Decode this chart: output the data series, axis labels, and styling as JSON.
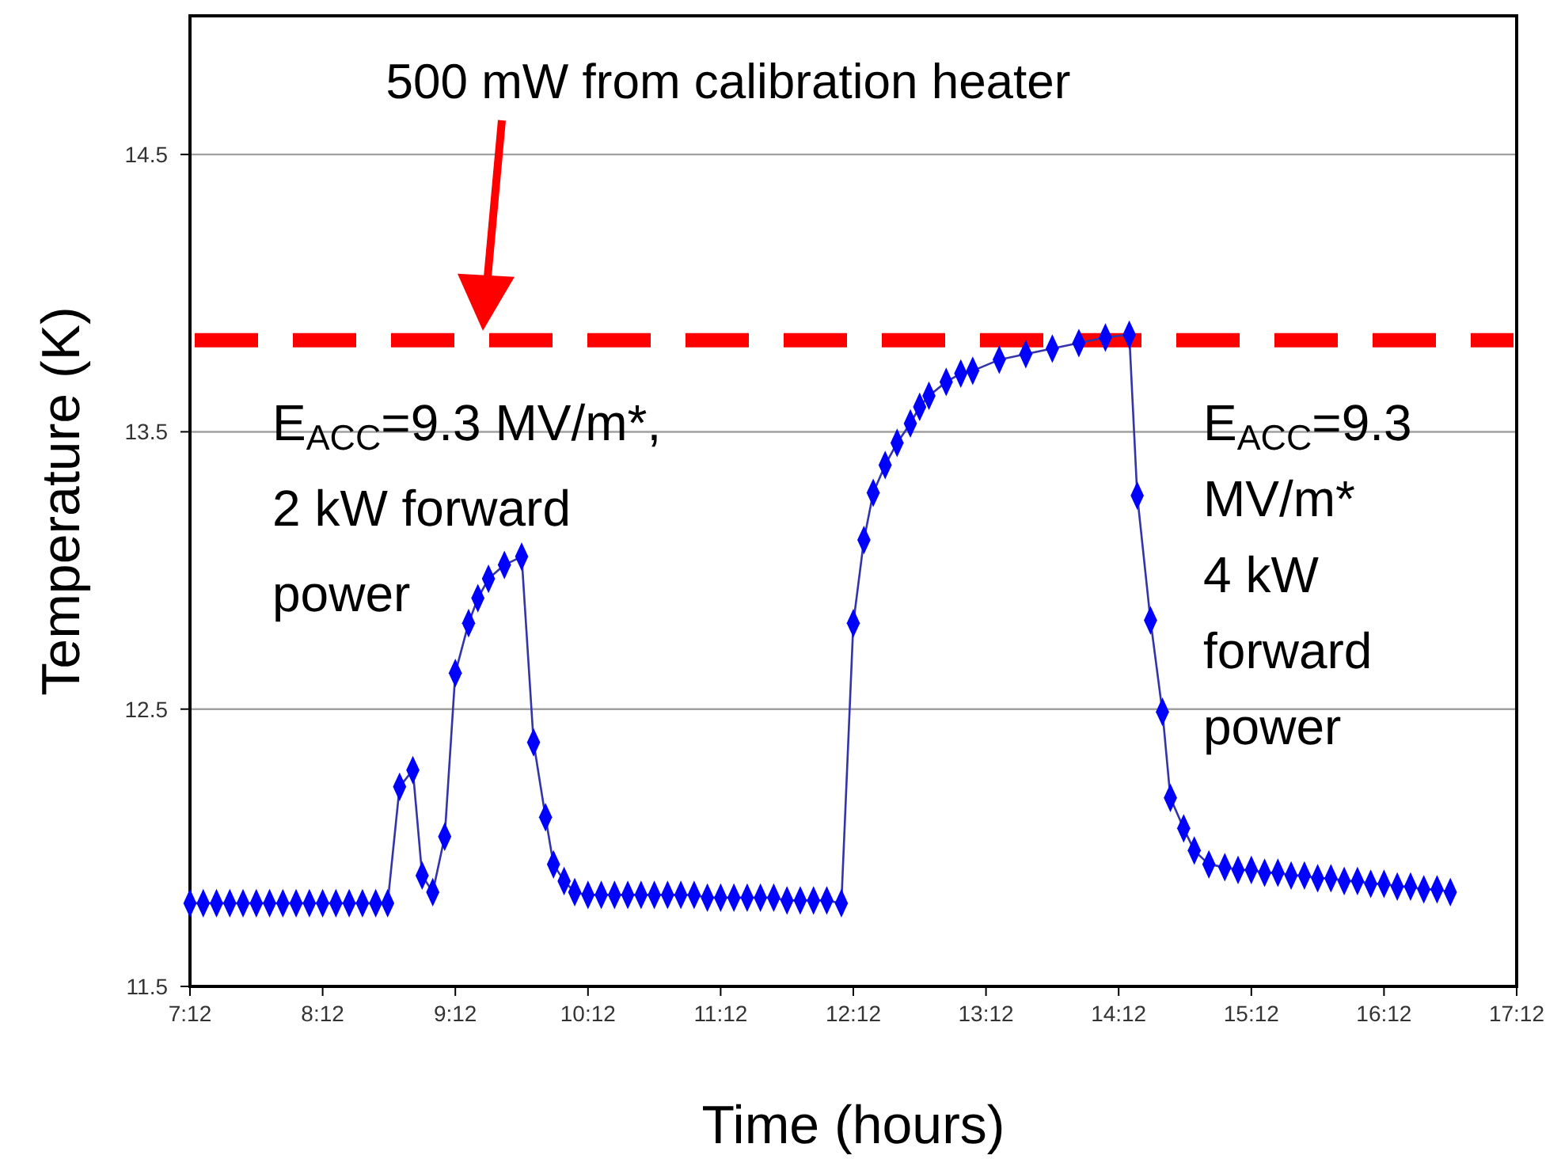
{
  "chart_data": {
    "type": "line",
    "xlabel": "Time (hours)",
    "ylabel": "Temperature (K)",
    "x": [
      7.2,
      7.3,
      7.4,
      7.5,
      7.6,
      7.7,
      7.8,
      7.9,
      8.0,
      8.1,
      8.2,
      8.3,
      8.4,
      8.5,
      8.6,
      8.69,
      8.78,
      8.88,
      8.95,
      9.03,
      9.12,
      9.2,
      9.3,
      9.37,
      9.45,
      9.57,
      9.7,
      9.79,
      9.88,
      9.94,
      10.02,
      10.1,
      10.2,
      10.3,
      10.4,
      10.5,
      10.6,
      10.7,
      10.8,
      10.9,
      11.0,
      11.1,
      11.2,
      11.3,
      11.4,
      11.5,
      11.6,
      11.7,
      11.8,
      11.9,
      12.0,
      12.11,
      12.2,
      12.28,
      12.35,
      12.44,
      12.53,
      12.63,
      12.7,
      12.77,
      12.9,
      13.01,
      13.1,
      13.3,
      13.5,
      13.7,
      13.9,
      14.1,
      14.28,
      14.34,
      14.44,
      14.53,
      14.59,
      14.69,
      14.77,
      14.88,
      15.0,
      15.1,
      15.2,
      15.3,
      15.4,
      15.5,
      15.6,
      15.7,
      15.8,
      15.9,
      16.0,
      16.1,
      16.2,
      16.3,
      16.4,
      16.5,
      16.6,
      16.7
    ],
    "series": [
      {
        "color": "#0000ff",
        "values": [
          11.8,
          11.8,
          11.8,
          11.8,
          11.8,
          11.8,
          11.8,
          11.8,
          11.8,
          11.8,
          11.8,
          11.8,
          11.8,
          11.8,
          11.8,
          11.8,
          12.22,
          12.28,
          11.9,
          11.84,
          12.04,
          12.63,
          12.81,
          12.9,
          12.97,
          13.02,
          13.05,
          12.38,
          12.11,
          11.94,
          11.88,
          11.84,
          11.83,
          11.83,
          11.83,
          11.83,
          11.83,
          11.83,
          11.83,
          11.83,
          11.83,
          11.82,
          11.82,
          11.82,
          11.82,
          11.82,
          11.82,
          11.81,
          11.81,
          11.81,
          11.81,
          11.8,
          12.81,
          13.11,
          13.28,
          13.38,
          13.46,
          13.53,
          13.59,
          13.63,
          13.68,
          13.71,
          13.72,
          13.76,
          13.78,
          13.8,
          13.82,
          13.84,
          13.85,
          13.27,
          12.82,
          12.49,
          12.18,
          12.07,
          11.99,
          11.94,
          11.93,
          11.92,
          11.92,
          11.91,
          11.91,
          11.9,
          11.9,
          11.89,
          11.89,
          11.88,
          11.88,
          11.87,
          11.87,
          11.86,
          11.86,
          11.85,
          11.85,
          11.84
        ]
      }
    ],
    "xlim": [
      7.2,
      17.2
    ],
    "xticks": [
      {
        "value": 7.2,
        "label": "7:12"
      },
      {
        "value": 8.2,
        "label": "8:12"
      },
      {
        "value": 9.2,
        "label": "9:12"
      },
      {
        "value": 10.2,
        "label": "10:12"
      },
      {
        "value": 11.2,
        "label": "11:12"
      },
      {
        "value": 12.2,
        "label": "12:12"
      },
      {
        "value": 13.2,
        "label": "13:12"
      },
      {
        "value": 14.2,
        "label": "14:12"
      },
      {
        "value": 15.2,
        "label": "15:12"
      },
      {
        "value": 16.2,
        "label": "16:12"
      },
      {
        "value": 17.2,
        "label": "17:12"
      }
    ],
    "ylim": [
      11.5,
      15.0
    ],
    "yticks": [
      11.5,
      12.5,
      13.5,
      14.5
    ],
    "grid": "y",
    "marker": "diamond",
    "line_style": "solid",
    "ref_lines": [
      {
        "axis": "y",
        "value": 13.83,
        "color": "#ff0000",
        "line_style": "dashed"
      }
    ],
    "annotations": [
      "E$_{ACC}$=9.3 MV/m*,\n2 kW forward\npower",
      "E$_{ACC}$=9.3\nMV/m*\n4 kW\nforward\npower",
      "500 mW from calibration heater"
    ]
  }
}
